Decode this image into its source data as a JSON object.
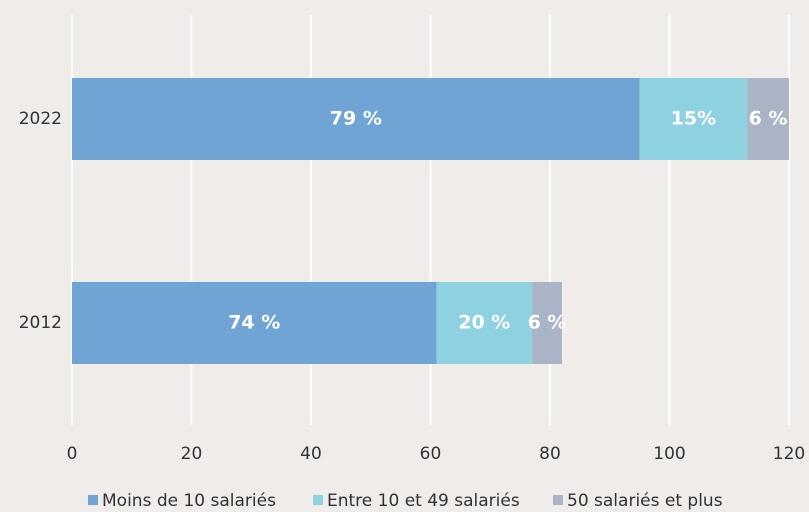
{
  "chart_data": {
    "type": "stacked-horizontal-bar",
    "categories": [
      "2022",
      "2012"
    ],
    "series": [
      {
        "name": "Moins de 10 salariés",
        "color": "#6fa4d5",
        "values": [
          95,
          61
        ],
        "share_labels": [
          "79 %",
          "74 %"
        ]
      },
      {
        "name": "Entre 10 et 49 salariés",
        "color": "#8ed1e0",
        "values": [
          18,
          16
        ],
        "share_labels": [
          "15%",
          "20 %"
        ]
      },
      {
        "name": "50 salariés et plus",
        "color": "#a9b5c6",
        "values": [
          7,
          5
        ],
        "share_labels": [
          "6 %",
          "6 %"
        ]
      }
    ],
    "xlim": [
      0,
      120
    ],
    "xticks": [
      0,
      20,
      40,
      60,
      80,
      100,
      120
    ],
    "grid": true,
    "legend": "bottom"
  }
}
